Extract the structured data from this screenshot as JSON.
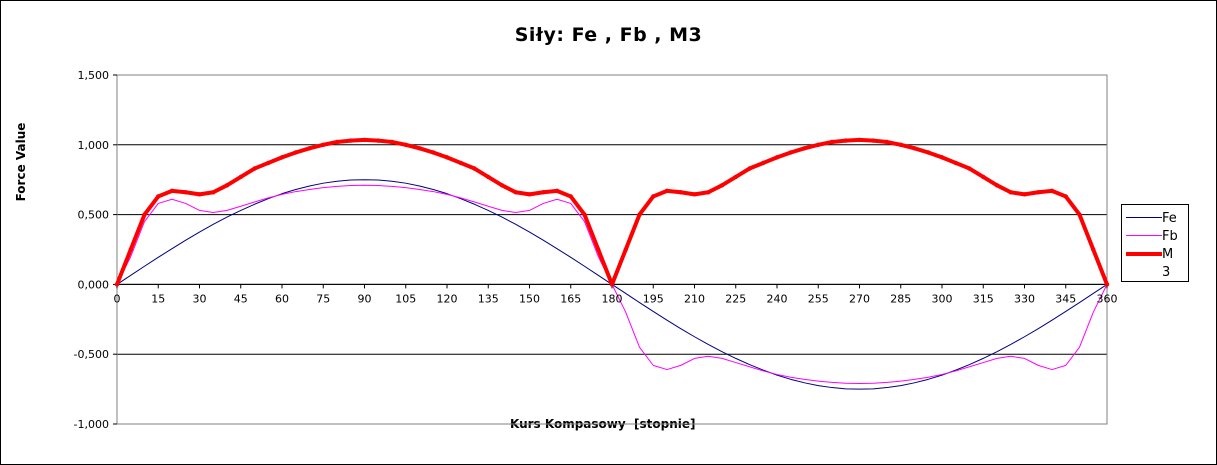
{
  "chart_data": {
    "type": "line",
    "title": "Siły:  Fe , Fb , M3",
    "xlabel": "Kurs Kompasowy  [stopnie]",
    "ylabel": "Force Value",
    "xlim": [
      0,
      360
    ],
    "ylim": [
      -1.0,
      1.5
    ],
    "x_ticks": [
      0,
      15,
      30,
      45,
      60,
      75,
      90,
      105,
      120,
      135,
      150,
      165,
      180,
      195,
      210,
      225,
      240,
      255,
      270,
      285,
      300,
      315,
      330,
      345,
      360
    ],
    "x_tick_labels": [
      "0",
      "15",
      "30",
      "45",
      "60",
      "75",
      "90",
      "105",
      "120",
      "135",
      "150",
      "165",
      "180",
      "195",
      "210",
      "225",
      "240",
      "255",
      "270",
      "285",
      "300",
      "315",
      "330",
      "345",
      "360"
    ],
    "y_ticks": [
      -1.0,
      -0.5,
      0.0,
      0.5,
      1.0,
      1.5
    ],
    "y_tick_labels": [
      "-1,000",
      "-0,500",
      "0,000",
      "0,500",
      "1,000",
      "1,500"
    ],
    "grid": "horizontal",
    "legend_position": "right",
    "x": [
      0,
      5,
      10,
      15,
      20,
      25,
      30,
      35,
      40,
      45,
      50,
      55,
      60,
      65,
      70,
      75,
      80,
      85,
      90,
      95,
      100,
      105,
      110,
      115,
      120,
      125,
      130,
      135,
      140,
      145,
      150,
      155,
      160,
      165,
      170,
      175,
      180,
      185,
      190,
      195,
      200,
      205,
      210,
      215,
      220,
      225,
      230,
      235,
      240,
      245,
      250,
      255,
      260,
      265,
      270,
      275,
      280,
      285,
      290,
      295,
      300,
      305,
      310,
      315,
      320,
      325,
      330,
      335,
      340,
      345,
      350,
      355,
      360
    ],
    "series": [
      {
        "name": "Fe",
        "color": "#000080",
        "width": 1,
        "values": [
          0.0,
          0.065,
          0.13,
          0.194,
          0.256,
          0.317,
          0.375,
          0.43,
          0.482,
          0.53,
          0.574,
          0.614,
          0.65,
          0.68,
          0.705,
          0.725,
          0.739,
          0.748,
          0.75,
          0.748,
          0.739,
          0.725,
          0.705,
          0.68,
          0.65,
          0.614,
          0.574,
          0.53,
          0.482,
          0.43,
          0.375,
          0.317,
          0.256,
          0.194,
          0.13,
          0.065,
          0.0,
          -0.065,
          -0.13,
          -0.194,
          -0.256,
          -0.317,
          -0.375,
          -0.43,
          -0.482,
          -0.53,
          -0.574,
          -0.614,
          -0.65,
          -0.68,
          -0.705,
          -0.725,
          -0.739,
          -0.748,
          -0.75,
          -0.748,
          -0.739,
          -0.725,
          -0.705,
          -0.68,
          -0.65,
          -0.614,
          -0.574,
          -0.53,
          -0.482,
          -0.43,
          -0.375,
          -0.317,
          -0.256,
          -0.194,
          -0.13,
          -0.065,
          0.0
        ]
      },
      {
        "name": "Fb",
        "color": "#ff00ff",
        "width": 1,
        "values": [
          0.0,
          0.2,
          0.45,
          0.58,
          0.61,
          0.58,
          0.53,
          0.515,
          0.53,
          0.56,
          0.59,
          0.62,
          0.645,
          0.665,
          0.68,
          0.693,
          0.702,
          0.708,
          0.71,
          0.708,
          0.702,
          0.693,
          0.68,
          0.665,
          0.645,
          0.62,
          0.59,
          0.56,
          0.53,
          0.515,
          0.53,
          0.58,
          0.61,
          0.58,
          0.45,
          0.2,
          0.0,
          -0.2,
          -0.45,
          -0.58,
          -0.61,
          -0.58,
          -0.53,
          -0.515,
          -0.53,
          -0.56,
          -0.59,
          -0.62,
          -0.645,
          -0.665,
          -0.68,
          -0.693,
          -0.702,
          -0.708,
          -0.71,
          -0.708,
          -0.702,
          -0.693,
          -0.68,
          -0.665,
          -0.645,
          -0.62,
          -0.59,
          -0.56,
          -0.53,
          -0.515,
          -0.53,
          -0.58,
          -0.61,
          -0.58,
          -0.45,
          -0.2,
          0.0
        ]
      },
      {
        "name": "M\n3",
        "color": "#ff0000",
        "width": 4,
        "values": [
          0.0,
          0.25,
          0.5,
          0.63,
          0.67,
          0.66,
          0.645,
          0.66,
          0.71,
          0.77,
          0.83,
          0.87,
          0.91,
          0.945,
          0.975,
          1.0,
          1.02,
          1.03,
          1.035,
          1.03,
          1.02,
          1.0,
          0.975,
          0.945,
          0.91,
          0.87,
          0.83,
          0.77,
          0.71,
          0.66,
          0.645,
          0.66,
          0.67,
          0.63,
          0.5,
          0.25,
          0.0,
          0.25,
          0.5,
          0.63,
          0.67,
          0.66,
          0.645,
          0.66,
          0.71,
          0.77,
          0.83,
          0.87,
          0.91,
          0.945,
          0.975,
          1.0,
          1.02,
          1.03,
          1.035,
          1.03,
          1.02,
          1.0,
          0.975,
          0.945,
          0.91,
          0.87,
          0.83,
          0.77,
          0.71,
          0.66,
          0.645,
          0.66,
          0.67,
          0.63,
          0.5,
          0.25,
          0.0
        ]
      }
    ]
  }
}
